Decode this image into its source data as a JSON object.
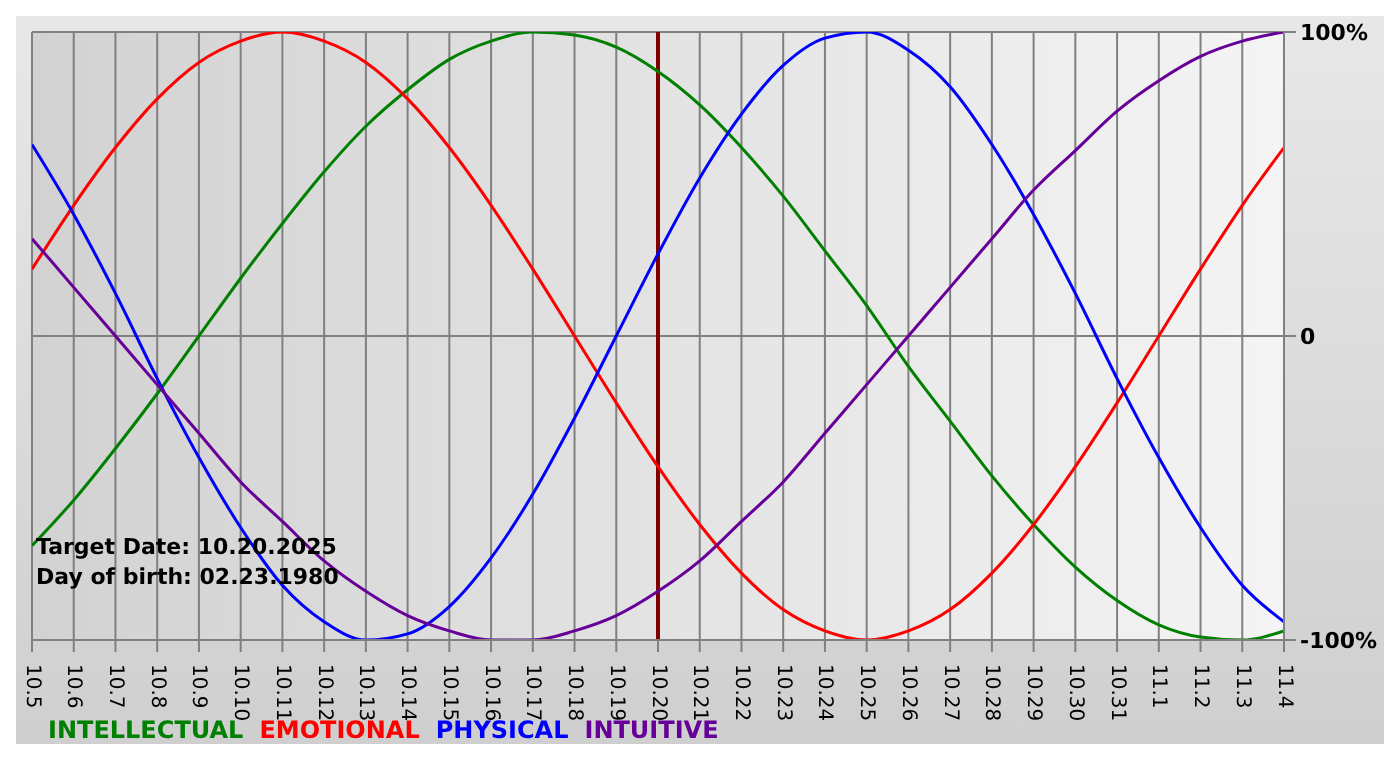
{
  "chart_data": {
    "type": "line",
    "categories": [
      "10.5",
      "10.6",
      "10.7",
      "10.8",
      "10.9",
      "10.10",
      "10.11",
      "10.12",
      "10.13",
      "10.14",
      "10.15",
      "10.16",
      "10.17",
      "10.18",
      "10.19",
      "10.20",
      "10.21",
      "10.22",
      "10.23",
      "10.24",
      "10.25",
      "10.26",
      "10.27",
      "10.28",
      "10.29",
      "10.30",
      "10.31",
      "11.1",
      "11.2",
      "11.3",
      "11.4"
    ],
    "series": [
      {
        "name": "INTELLECTUAL",
        "color": "#008000",
        "values": [
          -69,
          -54,
          -37,
          -19,
          0,
          19,
          37,
          54,
          69,
          81,
          91,
          97,
          100,
          99,
          95,
          87,
          76,
          62,
          46,
          28,
          10,
          -10,
          -28,
          -46,
          -62,
          -76,
          -87,
          -95,
          -99,
          -100,
          -97
        ]
      },
      {
        "name": "EMOTIONAL",
        "color": "#ff0000",
        "values": [
          22,
          43,
          62,
          78,
          90,
          97,
          100,
          97,
          90,
          78,
          62,
          43,
          22,
          0,
          -22,
          -43,
          -62,
          -78,
          -90,
          -97,
          -100,
          -97,
          -90,
          -78,
          -62,
          -43,
          -22,
          0,
          22,
          43,
          62
        ]
      },
      {
        "name": "PHYSICAL",
        "color": "#0000ff",
        "values": [
          63,
          40,
          14,
          -14,
          -40,
          -63,
          -82,
          -94,
          -100,
          -98,
          -89,
          -73,
          -52,
          -27,
          0,
          27,
          52,
          73,
          89,
          98,
          100,
          94,
          82,
          63,
          40,
          14,
          -14,
          -40,
          -63,
          -82,
          -94
        ]
      },
      {
        "name": "INTUITIVE",
        "color": "#660099",
        "values": [
          32,
          16,
          0,
          -16,
          -32,
          -48,
          -61,
          -74,
          -84,
          -92,
          -97,
          -100,
          -100,
          -97,
          -92,
          -84,
          -74,
          -61,
          -48,
          -32,
          -16,
          0,
          16,
          32,
          48,
          61,
          74,
          84,
          92,
          97,
          100
        ]
      }
    ],
    "ylim": [
      -100,
      100
    ],
    "yticks": [
      {
        "value": 100,
        "label": "100%"
      },
      0,
      {
        "value": -100,
        "label": "-100%"
      }
    ],
    "grid": true,
    "legend": "bottom",
    "marker": "none",
    "line_style": "solid",
    "ref_lines": [
      {
        "axis": "x",
        "value": "10.20",
        "color": "#800000"
      }
    ],
    "annotations": [
      "Target Date: 10.20.2025",
      "Day of birth: 02.23.1980"
    ]
  }
}
